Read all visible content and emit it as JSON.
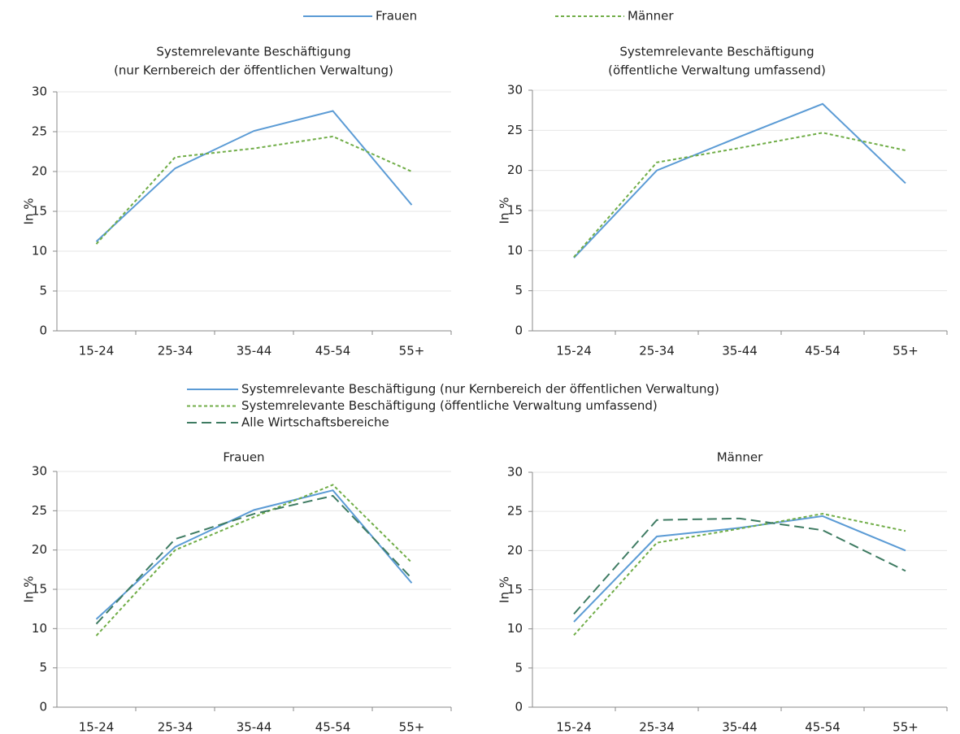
{
  "chart_data": [
    {
      "type": "line",
      "title": "Systemrelevante Beschäftigung",
      "subtitle": "(nur Kernbereich der öffentlichen Verwaltung)",
      "y_label": "In %",
      "categories": [
        "15-24",
        "25-34",
        "35-44",
        "45-54",
        "55+"
      ],
      "series": [
        {
          "name": "Frauen",
          "color": "#5b9bd5",
          "style": "solid",
          "values": [
            11.2,
            20.4,
            25.1,
            27.6,
            15.8
          ]
        },
        {
          "name": "Männer",
          "color": "#70ad47",
          "style": "dotted",
          "values": [
            10.9,
            21.8,
            22.9,
            24.4,
            20.0
          ]
        }
      ],
      "ylim": [
        0,
        30
      ],
      "yticks": [
        0,
        5,
        10,
        15,
        20,
        25,
        30
      ],
      "grid": true,
      "legend": true
    },
    {
      "type": "line",
      "title": "Systemrelevante Beschäftigung",
      "subtitle": "(öffentliche Verwaltung umfassend)",
      "y_label": "In %",
      "categories": [
        "15-24",
        "25-34",
        "35-44",
        "45-54",
        "55+"
      ],
      "series": [
        {
          "name": "Frauen",
          "color": "#5b9bd5",
          "style": "solid",
          "values": [
            9.1,
            20.0,
            24.2,
            28.3,
            18.4
          ]
        },
        {
          "name": "Männer",
          "color": "#70ad47",
          "style": "dotted",
          "values": [
            9.2,
            21.0,
            22.8,
            24.7,
            22.5
          ]
        }
      ],
      "ylim": [
        0,
        30
      ],
      "yticks": [
        0,
        5,
        10,
        15,
        20,
        25,
        30
      ],
      "grid": true,
      "legend": false
    },
    {
      "type": "line",
      "title": "Frauen",
      "y_label": "In %",
      "categories": [
        "15-24",
        "25-34",
        "35-44",
        "45-54",
        "55+"
      ],
      "series": [
        {
          "name": "Systemrelevante Beschäftigung (nur Kernbereich der öffentlichen Verwaltung)",
          "color": "#5b9bd5",
          "style": "solid",
          "values": [
            11.2,
            20.4,
            25.1,
            27.6,
            15.8
          ]
        },
        {
          "name": "Systemrelevante Beschäftigung (öffentliche Verwaltung umfassend)",
          "color": "#70ad47",
          "style": "dotted",
          "values": [
            9.1,
            20.0,
            24.2,
            28.3,
            18.4
          ]
        },
        {
          "name": "Alle Wirtschaftsbereiche",
          "color": "#3e7b62",
          "style": "dashed",
          "values": [
            10.6,
            21.4,
            24.6,
            26.9,
            16.4
          ]
        }
      ],
      "ylim": [
        0,
        30
      ],
      "yticks": [
        0,
        5,
        10,
        15,
        20,
        25,
        30
      ],
      "grid": true,
      "legend": true
    },
    {
      "type": "line",
      "title": "Männer",
      "y_label": "In %",
      "categories": [
        "15-24",
        "25-34",
        "35-44",
        "45-54",
        "55+"
      ],
      "series": [
        {
          "name": "Systemrelevante Beschäftigung (nur Kernbereich der öffentlichen Verwaltung)",
          "color": "#5b9bd5",
          "style": "solid",
          "values": [
            10.9,
            21.8,
            22.9,
            24.4,
            20.0
          ]
        },
        {
          "name": "Systemrelevante Beschäftigung (öffentliche Verwaltung umfassend)",
          "color": "#70ad47",
          "style": "dotted",
          "values": [
            9.2,
            21.0,
            22.8,
            24.7,
            22.5
          ]
        },
        {
          "name": "Alle Wirtschaftsbereiche",
          "color": "#3e7b62",
          "style": "dashed",
          "values": [
            11.9,
            23.9,
            24.1,
            22.6,
            17.4
          ]
        }
      ],
      "ylim": [
        0,
        30
      ],
      "yticks": [
        0,
        5,
        10,
        15,
        20,
        25,
        30
      ],
      "grid": true,
      "legend": false
    }
  ]
}
